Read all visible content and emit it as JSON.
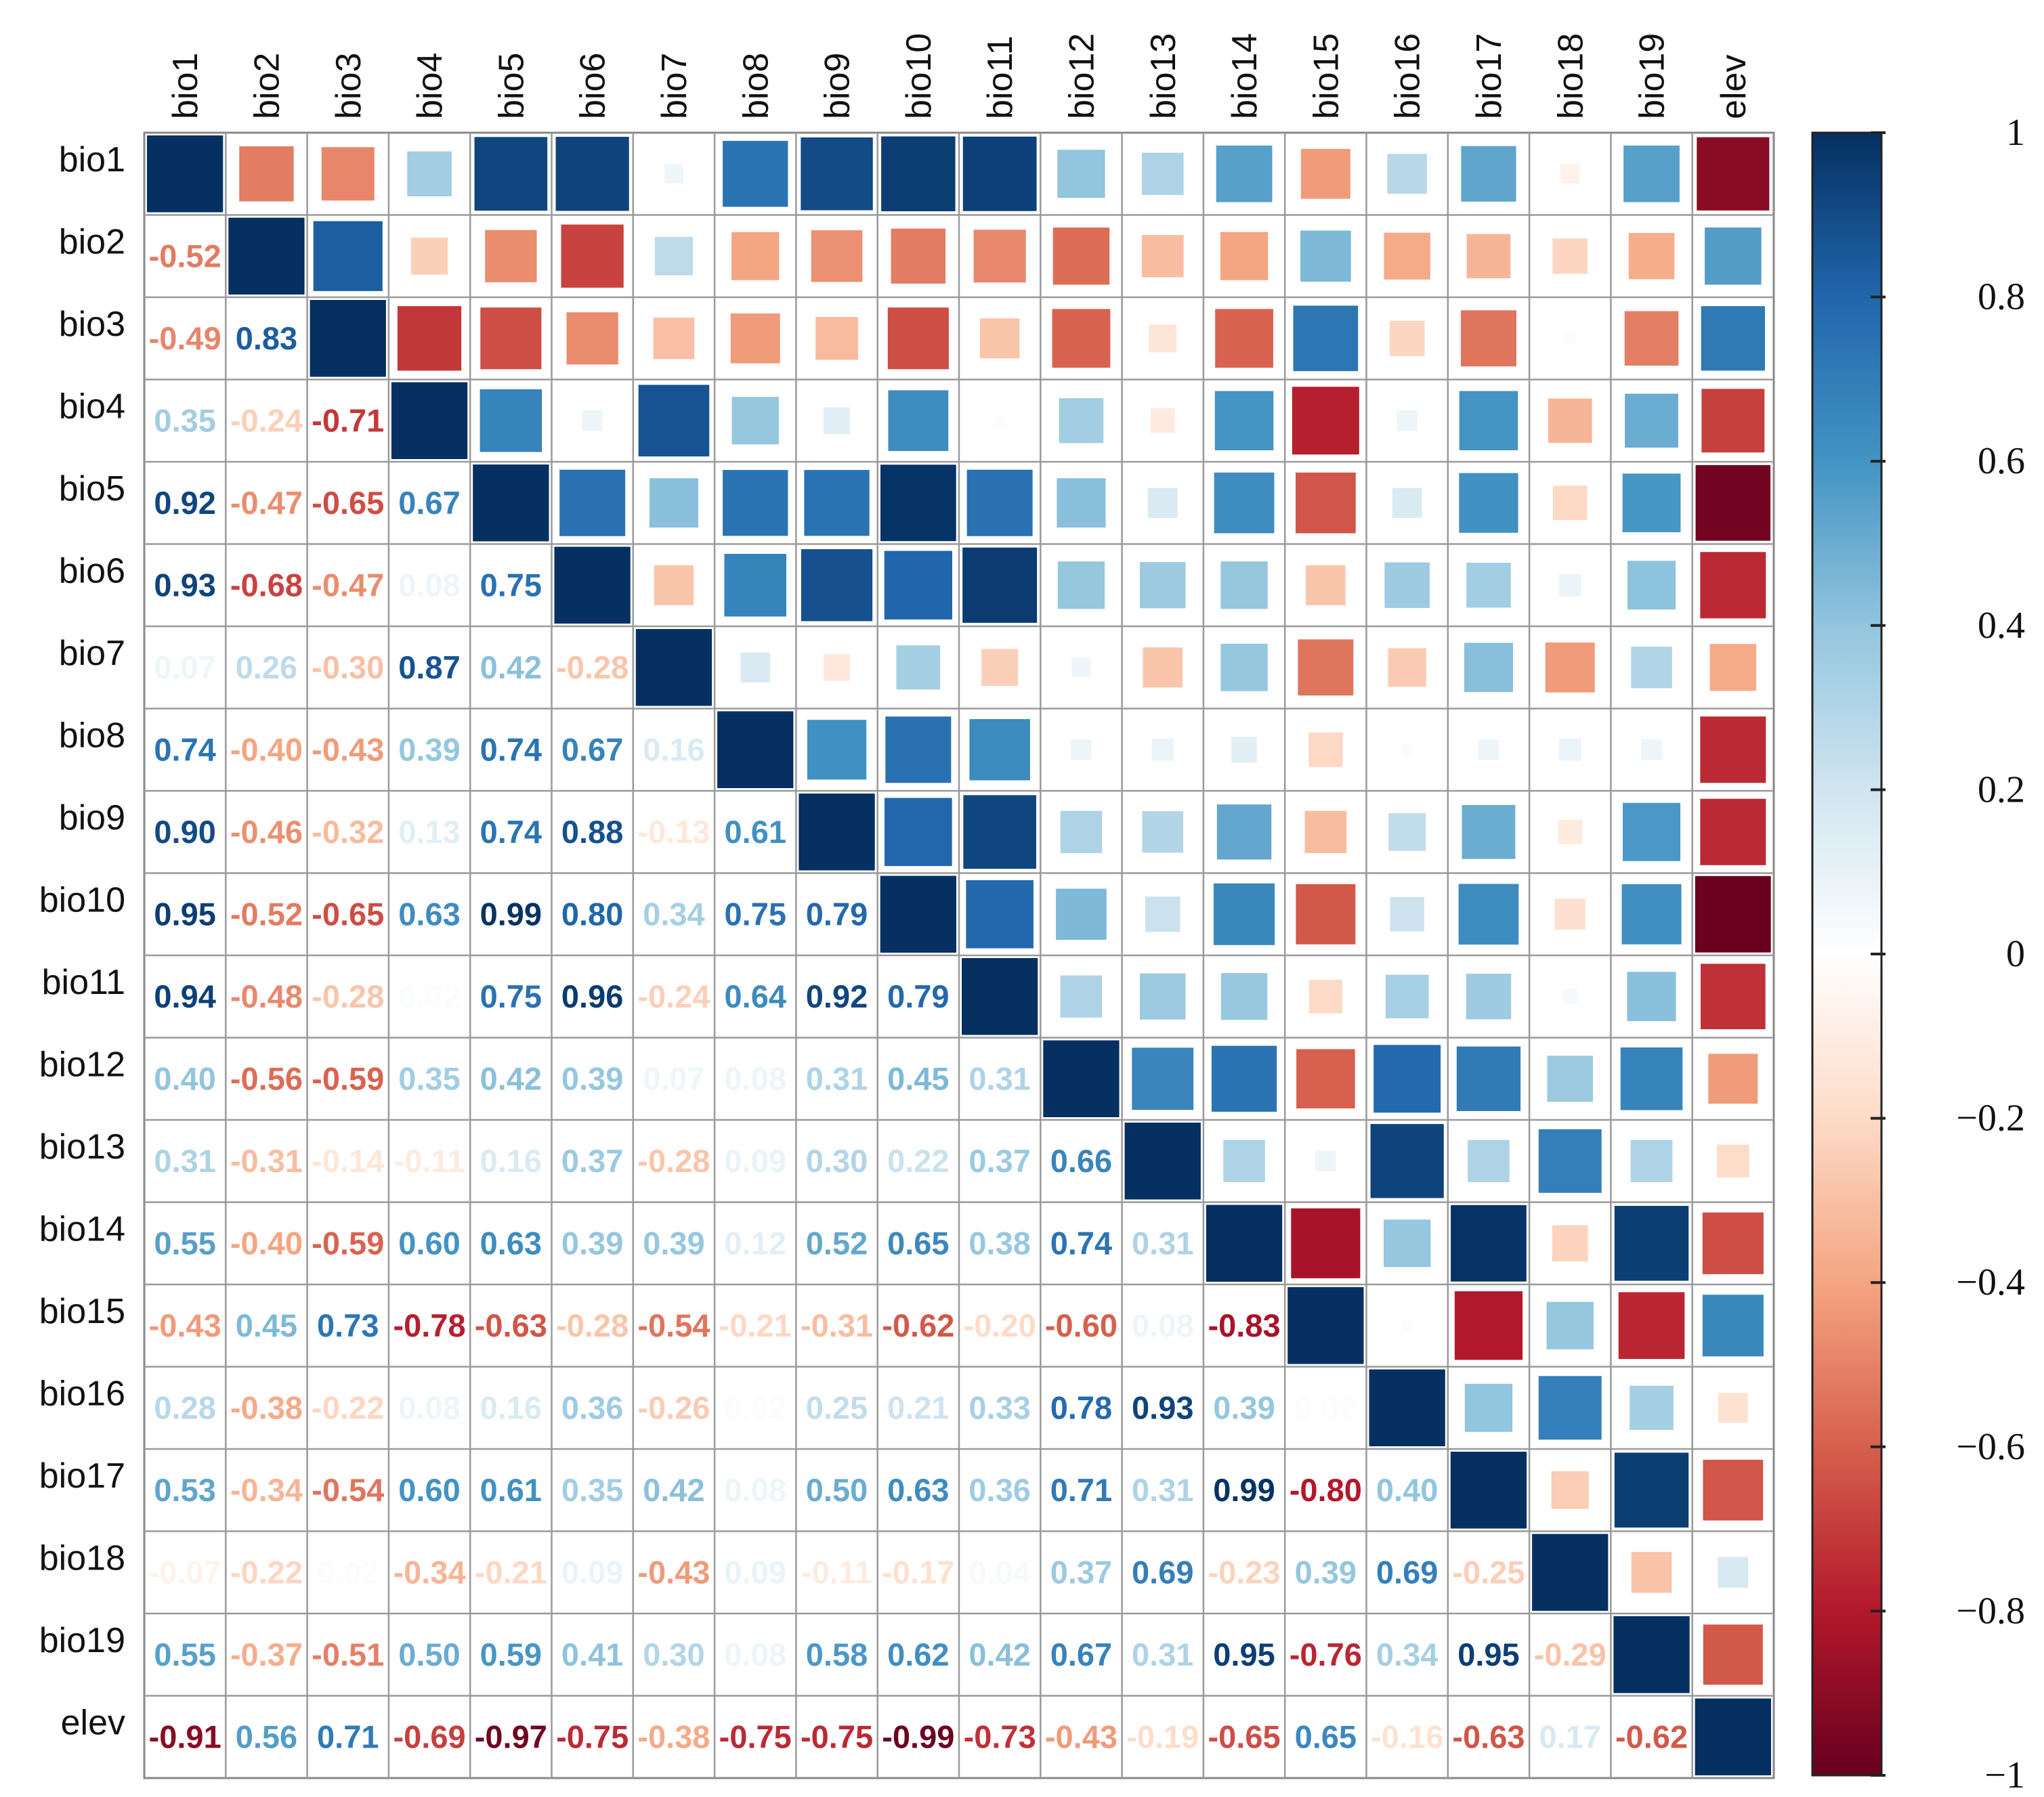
{
  "chart_data": {
    "type": "heatmap",
    "title": "",
    "variables": [
      "bio1",
      "bio2",
      "bio3",
      "bio4",
      "bio5",
      "bio6",
      "bio7",
      "bio8",
      "bio9",
      "bio10",
      "bio11",
      "bio12",
      "bio13",
      "bio14",
      "bio15",
      "bio16",
      "bio17",
      "bio18",
      "bio19",
      "elev"
    ],
    "lower_triangle_values": [
      [],
      [
        -0.52
      ],
      [
        -0.49,
        0.83
      ],
      [
        0.35,
        -0.24,
        -0.71
      ],
      [
        0.92,
        -0.47,
        -0.65,
        0.67
      ],
      [
        0.93,
        -0.68,
        -0.47,
        0.08,
        0.75
      ],
      [
        0.07,
        0.26,
        -0.3,
        0.87,
        0.42,
        -0.28
      ],
      [
        0.74,
        -0.4,
        -0.43,
        0.39,
        0.74,
        0.67,
        0.16
      ],
      [
        0.9,
        -0.46,
        -0.32,
        0.13,
        0.74,
        0.88,
        -0.13,
        0.61
      ],
      [
        0.95,
        -0.52,
        -0.65,
        0.63,
        0.99,
        0.8,
        0.34,
        0.75,
        0.79
      ],
      [
        0.94,
        -0.48,
        -0.28,
        0.02,
        0.75,
        0.96,
        -0.24,
        0.64,
        0.92,
        0.79
      ],
      [
        0.4,
        -0.56,
        -0.59,
        0.35,
        0.42,
        0.39,
        0.07,
        0.08,
        0.31,
        0.45,
        0.31
      ],
      [
        0.31,
        -0.31,
        -0.14,
        -0.11,
        0.16,
        0.37,
        -0.28,
        0.09,
        0.3,
        0.22,
        0.37,
        0.66
      ],
      [
        0.55,
        -0.4,
        -0.59,
        0.6,
        0.63,
        0.39,
        0.39,
        0.12,
        0.52,
        0.65,
        0.38,
        0.74,
        0.31
      ],
      [
        -0.43,
        0.45,
        0.73,
        -0.78,
        -0.63,
        -0.28,
        -0.54,
        -0.21,
        -0.31,
        -0.62,
        -0.2,
        -0.6,
        0.08,
        -0.83
      ],
      [
        0.28,
        -0.38,
        -0.22,
        0.08,
        0.16,
        0.36,
        -0.26,
        0.02,
        0.25,
        0.21,
        0.33,
        0.78,
        0.93,
        0.39,
        0.02
      ],
      [
        0.53,
        -0.34,
        -0.54,
        0.6,
        0.61,
        0.35,
        0.42,
        0.08,
        0.5,
        0.63,
        0.36,
        0.71,
        0.31,
        0.99,
        -0.8,
        0.4
      ],
      [
        -0.07,
        -0.22,
        0.02,
        -0.34,
        -0.21,
        0.09,
        -0.43,
        0.09,
        -0.11,
        -0.17,
        0.04,
        0.37,
        0.69,
        -0.23,
        0.39,
        0.69,
        -0.25
      ],
      [
        0.55,
        -0.37,
        -0.51,
        0.5,
        0.59,
        0.41,
        0.3,
        0.08,
        0.58,
        0.62,
        0.42,
        0.67,
        0.31,
        0.95,
        -0.76,
        0.34,
        0.95,
        -0.29
      ],
      [
        -0.91,
        0.56,
        0.71,
        -0.69,
        -0.97,
        -0.75,
        -0.38,
        -0.75,
        -0.75,
        -0.99,
        -0.73,
        -0.43,
        -0.19,
        -0.65,
        0.65,
        -0.16,
        -0.63,
        0.17,
        -0.62
      ]
    ],
    "lower_triangle_labels": [
      [],
      [
        "-0.52"
      ],
      [
        "-0.49",
        "0.83"
      ],
      [
        "0.35",
        "-0.24",
        "-0.71"
      ],
      [
        "0.92",
        "-0.47",
        "-0.65",
        "0.67"
      ],
      [
        "0.93",
        "-0.68",
        "-0.47",
        "0.08",
        "0.75"
      ],
      [
        "0.07",
        "0.26",
        "-0.30",
        "0.87",
        "0.42",
        "-0.28"
      ],
      [
        "0.74",
        "-0.40",
        "-0.43",
        "0.39",
        "0.74",
        "0.67",
        "0.16"
      ],
      [
        "0.90",
        "-0.46",
        "-0.32",
        "0.13",
        "0.74",
        "0.88",
        "-0.13",
        "0.61"
      ],
      [
        "0.95",
        "-0.52",
        "-0.65",
        "0.63",
        "0.99",
        "0.80",
        "0.34",
        "0.75",
        "0.79"
      ],
      [
        "0.94",
        "-0.48",
        "-0.28",
        "0.02",
        "0.75",
        "0.96",
        "-0.24",
        "0.64",
        "0.92",
        "0.79"
      ],
      [
        "0.40",
        "-0.56",
        "-0.59",
        "0.35",
        "0.42",
        "0.39",
        "0.07",
        "0.08",
        "0.31",
        "0.45",
        "0.31"
      ],
      [
        "0.31",
        "-0.31",
        "-0.14",
        "-0.11",
        "0.16",
        "0.37",
        "-0.28",
        "0.09",
        "0.30",
        "0.22",
        "0.37",
        "0.66"
      ],
      [
        "0.55",
        "-0.40",
        "-0.59",
        "0.60",
        "0.63",
        "0.39",
        "0.39",
        "0.12",
        "0.52",
        "0.65",
        "0.38",
        "0.74",
        "0.31"
      ],
      [
        "-0.43",
        "0.45",
        "0.73",
        "-0.78",
        "-0.63",
        "-0.28",
        "-0.54",
        "-0.21",
        "-0.31",
        "-0.62",
        "-0.20",
        "-0.60",
        "0.08",
        "-0.83"
      ],
      [
        "0.28",
        "-0.38",
        "-0.22",
        "0.08",
        "0.16",
        "0.36",
        "-0.26",
        "0.02",
        "0.25",
        "0.21",
        "0.33",
        "0.78",
        "0.93",
        "0.39",
        "0.02"
      ],
      [
        "0.53",
        "-0.34",
        "-0.54",
        "0.60",
        "0.61",
        "0.35",
        "0.42",
        "0.08",
        "0.50",
        "0.63",
        "0.36",
        "0.71",
        "0.31",
        "0.99",
        "-0.80",
        "0.40"
      ],
      [
        "-0.07",
        "-0.22",
        "0.02",
        "-0.34",
        "-0.21",
        "0.09",
        "-0.43",
        "0.09",
        "-0.11",
        "-0.17",
        "0.04",
        "0.37",
        "0.69",
        "-0.23",
        "0.39",
        "0.69",
        "-0.25"
      ],
      [
        "0.55",
        "-0.37",
        "-0.51",
        "0.50",
        "0.59",
        "0.41",
        "0.30",
        "0.08",
        "0.58",
        "0.62",
        "0.42",
        "0.67",
        "0.31",
        "0.95",
        "-0.76",
        "0.34",
        "0.95",
        "-0.29"
      ],
      [
        "-0.91",
        "0.56",
        "0.71",
        "-0.69",
        "-0.97",
        "-0.75",
        "-0.38",
        "-0.75",
        "-0.75",
        "-0.99",
        "-0.73",
        "-0.43",
        "-0.19",
        "-0.65",
        "0.65",
        "-0.16",
        "-0.63",
        "0.17",
        "-0.62"
      ]
    ],
    "upper_triangle": "colored squares, size and color proportional to correlation (mirror of lower triangle)",
    "diagonal": 1.0,
    "colorbar": {
      "range": [
        -1,
        1
      ],
      "ticks": [
        1,
        0.8,
        0.6,
        0.4,
        0.2,
        0,
        -0.2,
        -0.4,
        -0.6,
        -0.8,
        -1
      ],
      "tick_labels": [
        "1",
        "0.8",
        "0.6",
        "0.4",
        "0.2",
        "0",
        "−0.2",
        "−0.4",
        "−0.6",
        "−0.8",
        "−1"
      ]
    },
    "color_scale": {
      "negative_end": "#67001f",
      "neutral": "#ffffff",
      "positive_end": "#053061",
      "stops": [
        "#67001f",
        "#b2182b",
        "#d6604d",
        "#f4a582",
        "#fddbc7",
        "#ffffff",
        "#d1e5f0",
        "#92c5de",
        "#4393c3",
        "#2166ac",
        "#053061"
      ]
    }
  }
}
